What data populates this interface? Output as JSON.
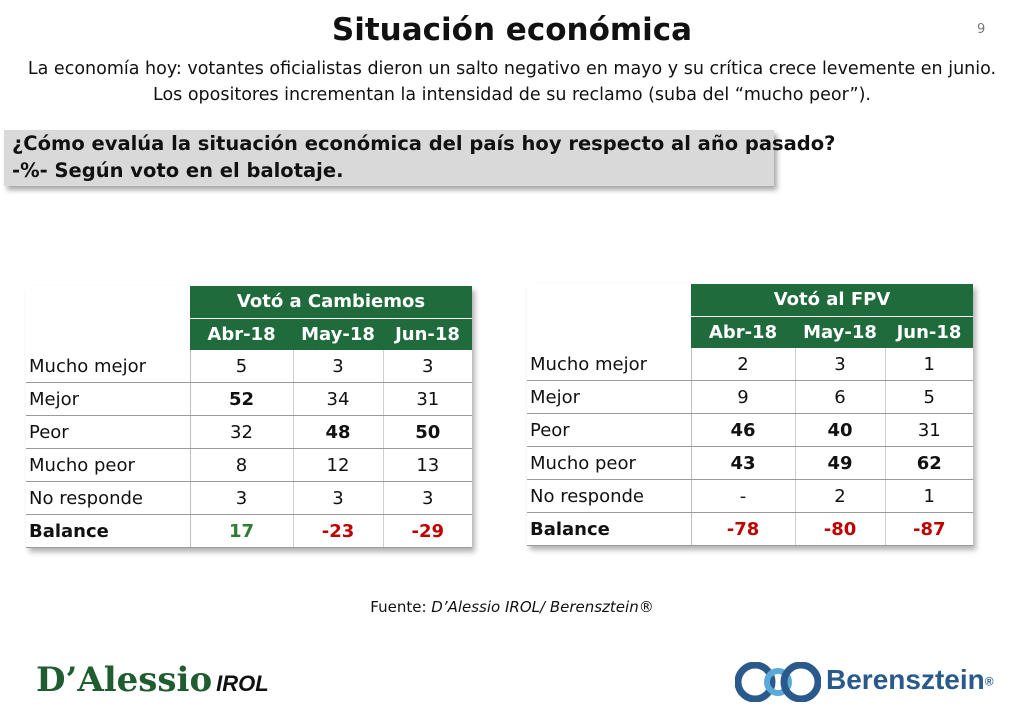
{
  "header": {
    "title": "Situación económica",
    "page_number": "9",
    "subtitle_line1": "La economía hoy: votantes oficialistas dieron un salto negativo en mayo y su crítica crece levemente en junio.",
    "subtitle_line2": "Los opositores incrementan la intensidad de su reclamo (suba del “mucho peor”)."
  },
  "question": {
    "line1": "¿Cómo evalúa la situación económica del país hoy respecto al año pasado?",
    "line2": "-%- Según voto en el balotaje."
  },
  "tables": {
    "cambiemos": {
      "group": "Votó a Cambiemos",
      "months": [
        "Abr-18",
        "May-18",
        "Jun-18"
      ],
      "rows": [
        {
          "label": "Mucho mejor",
          "values": [
            "5",
            "3",
            "3"
          ]
        },
        {
          "label": "Mejor",
          "values": [
            "52",
            "34",
            "31"
          ]
        },
        {
          "label": "Peor",
          "values": [
            "32",
            "48",
            "50"
          ]
        },
        {
          "label": "Mucho peor",
          "values": [
            "8",
            "12",
            "13"
          ]
        },
        {
          "label": "No responde",
          "values": [
            "3",
            "3",
            "3"
          ]
        },
        {
          "label": "Balance",
          "values": [
            "17",
            "-23",
            "-29"
          ]
        }
      ]
    },
    "fpv": {
      "group": "Votó al FPV",
      "months": [
        "Abr-18",
        "May-18",
        "Jun-18"
      ],
      "rows": [
        {
          "label": "Mucho mejor",
          "values": [
            "2",
            "3",
            "1"
          ]
        },
        {
          "label": "Mejor",
          "values": [
            "9",
            "6",
            "5"
          ]
        },
        {
          "label": "Peor",
          "values": [
            "46",
            "40",
            "31"
          ]
        },
        {
          "label": "Mucho peor",
          "values": [
            "43",
            "49",
            "62"
          ]
        },
        {
          "label": "No responde",
          "values": [
            "-",
            "2",
            "1"
          ]
        },
        {
          "label": "Balance",
          "values": [
            "-78",
            "-80",
            "-87"
          ]
        }
      ]
    }
  },
  "footer": {
    "source_prefix": "Fuente: ",
    "source_text": "D’Alessio IROL/ Berensztein®",
    "logo_left_main": "D’Alessio",
    "logo_left_suffix": "IROL",
    "logo_right_brand": "Berensztein",
    "logo_right_reg": "®"
  },
  "colors": {
    "header_green": "#1f6b3c",
    "positive_green": "#2e7d32",
    "negative_red": "#c00000",
    "question_bg": "#d9d9d9",
    "brand_blue": "#2a5a8c"
  }
}
